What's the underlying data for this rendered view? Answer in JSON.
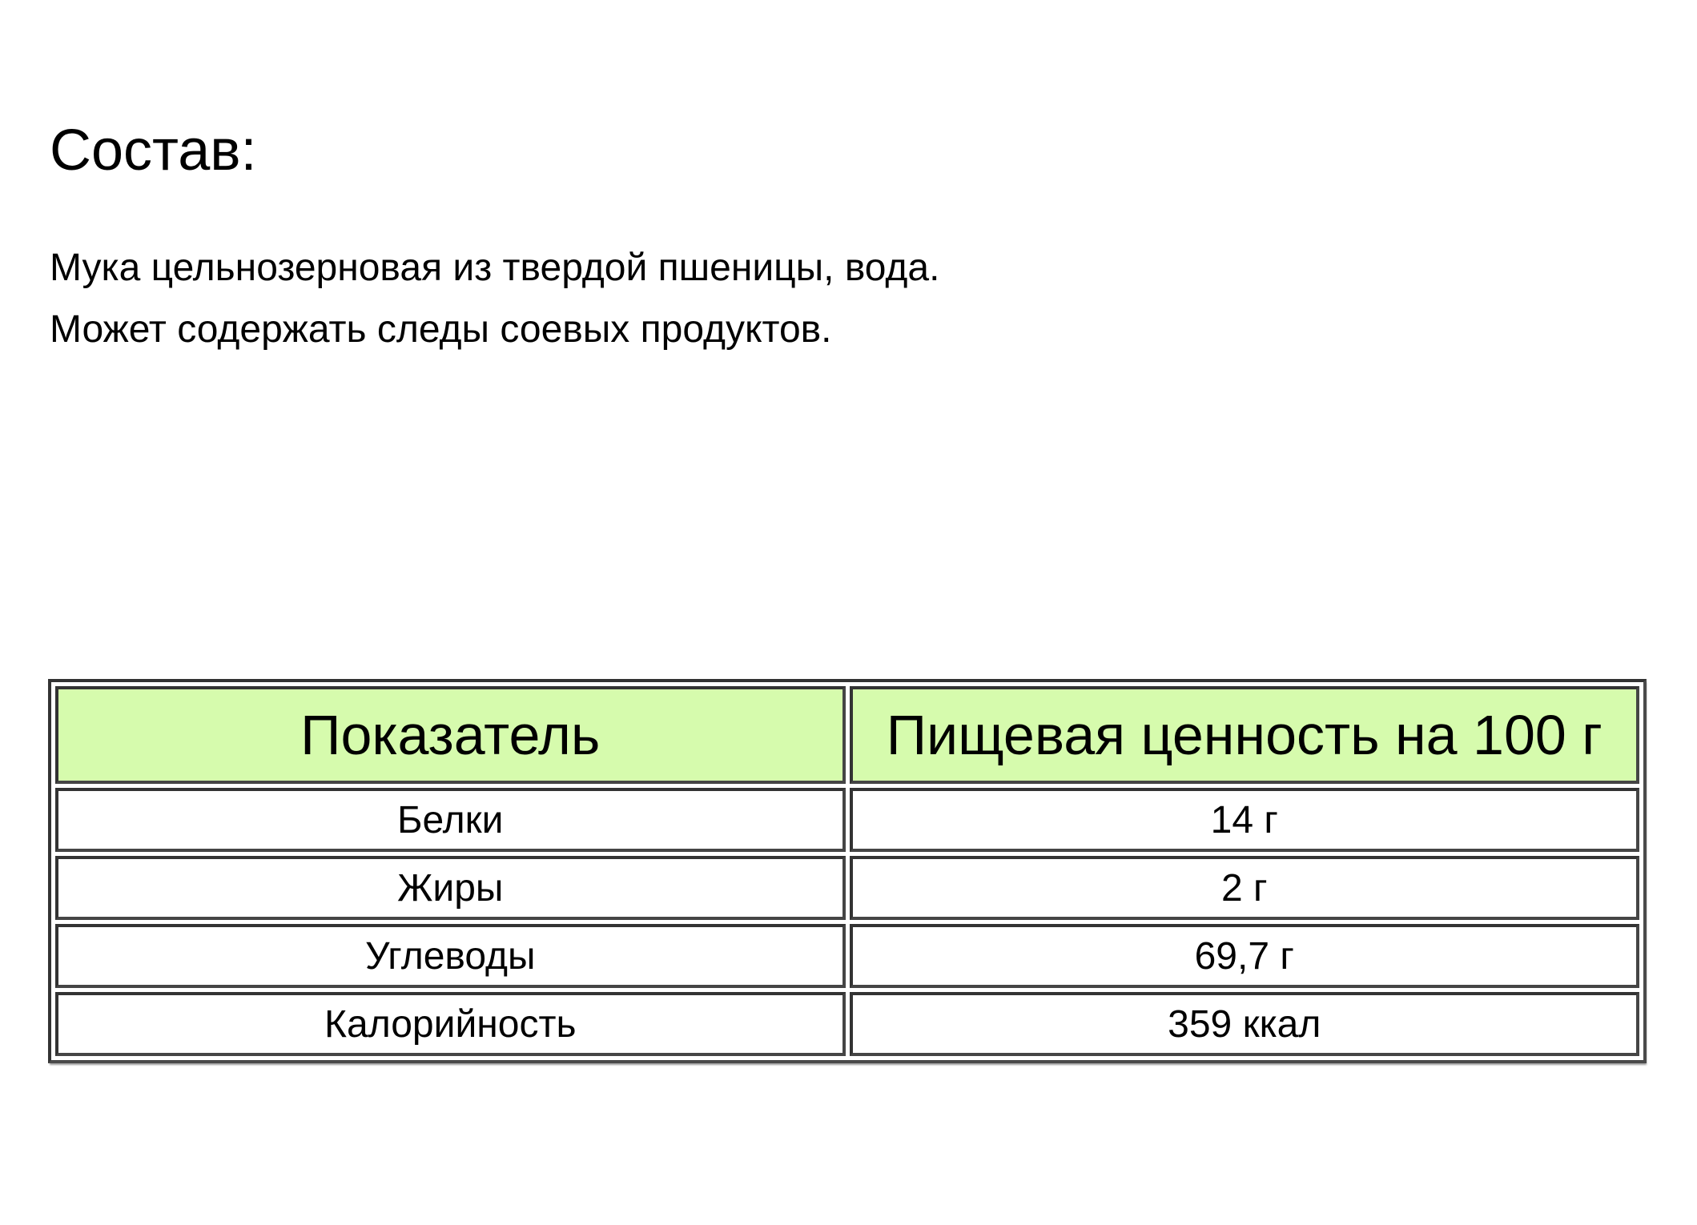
{
  "page": {
    "title": "Состав:",
    "ingredients_lines": [
      "Мука цельнозерновая из твердой пшеницы, вода.",
      "Может содержать следы соевых продуктов."
    ]
  },
  "table": {
    "header": [
      "Показатель",
      "Пищевая ценность на 100 г"
    ],
    "rows": [
      {
        "label": "Белки",
        "value": "14 г"
      },
      {
        "label": "Жиры",
        "value": "2 г"
      },
      {
        "label": "Углеводы",
        "value": "69,7 г"
      },
      {
        "label": "Калорийность",
        "value": "359 ккал"
      }
    ],
    "colors": {
      "header_bg": "#d6fbad",
      "border": "#333333",
      "text": "#000000",
      "page_bg": "#ffffff"
    }
  }
}
